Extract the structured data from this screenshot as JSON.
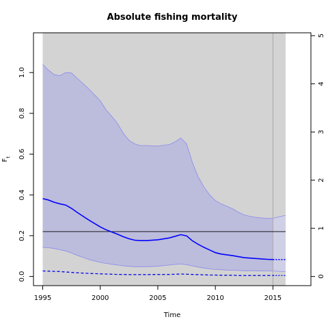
{
  "chart_data": {
    "type": "line",
    "title": "Absolute fishing mortality",
    "xlabel": "Time",
    "ylabel_main": "F",
    "ylabel_sub": "t",
    "xlim": [
      1994.2,
      2018.3
    ],
    "ylim": [
      -0.045,
      1.195
    ],
    "y2lim": [
      -0.19,
      5.06
    ],
    "x_ticks": [
      1995,
      2000,
      2005,
      2010,
      2015
    ],
    "x_tick_labels": [
      "1995",
      "2000",
      "2005",
      "2010",
      "2015"
    ],
    "y_ticks": [
      0.0,
      0.2,
      0.4,
      0.6,
      0.8,
      1.0
    ],
    "y_tick_labels": [
      "0.0",
      "0.2",
      "0.4",
      "0.6",
      "0.8",
      "1.0"
    ],
    "y2_ticks": [
      0,
      1,
      2,
      3,
      4,
      5
    ],
    "y2_tick_labels": [
      "0",
      "1",
      "2",
      "3",
      "4",
      "5"
    ],
    "shaded_x_range": [
      1995,
      2016.1
    ],
    "vertical_line_x": 2015,
    "reference_line_y": 0.22,
    "x": [
      1995,
      1995.5,
      1996,
      1996.5,
      1997,
      1997.5,
      1998,
      1999,
      2000,
      2000.5,
      2001,
      2001.5,
      2002,
      2002.5,
      2003,
      2003.5,
      2004,
      2005,
      2006,
      2006.5,
      2007,
      2007.5,
      2008,
      2008.5,
      2009,
      2009.5,
      2010,
      2010.5,
      2011,
      2011.5,
      2012,
      2012.5,
      2013,
      2013.5,
      2014,
      2014.5,
      2015
    ],
    "series": [
      {
        "role": "estimate",
        "style": "solid",
        "color": "#0000ff",
        "values": [
          0.382,
          0.375,
          0.364,
          0.356,
          0.35,
          0.334,
          0.314,
          0.277,
          0.243,
          0.229,
          0.218,
          0.207,
          0.195,
          0.185,
          0.178,
          0.176,
          0.176,
          0.18,
          0.189,
          0.197,
          0.205,
          0.199,
          0.175,
          0.158,
          0.143,
          0.13,
          0.117,
          0.11,
          0.106,
          0.102,
          0.097,
          0.092,
          0.09,
          0.088,
          0.086,
          0.084,
          0.083
        ]
      },
      {
        "role": "upper",
        "style": "band",
        "color": "#8a8aee",
        "values": [
          1.04,
          1.012,
          0.99,
          0.985,
          1.0,
          0.998,
          0.972,
          0.92,
          0.862,
          0.818,
          0.785,
          0.75,
          0.702,
          0.668,
          0.65,
          0.642,
          0.642,
          0.64,
          0.647,
          0.66,
          0.679,
          0.65,
          0.56,
          0.49,
          0.44,
          0.4,
          0.372,
          0.356,
          0.344,
          0.332,
          0.315,
          0.302,
          0.295,
          0.29,
          0.287,
          0.285,
          0.285
        ]
      },
      {
        "role": "lower",
        "style": "band",
        "color": "#8a8aee",
        "values": [
          0.142,
          0.141,
          0.137,
          0.131,
          0.125,
          0.115,
          0.103,
          0.083,
          0.069,
          0.064,
          0.06,
          0.056,
          0.052,
          0.05,
          0.048,
          0.048,
          0.048,
          0.05,
          0.056,
          0.059,
          0.061,
          0.058,
          0.052,
          0.046,
          0.041,
          0.037,
          0.034,
          0.033,
          0.031,
          0.03,
          0.029,
          0.028,
          0.028,
          0.028,
          0.027,
          0.027,
          0.027
        ]
      },
      {
        "role": "secondary",
        "style": "dashed",
        "color": "#0000ff",
        "values": [
          0.027,
          0.026,
          0.025,
          0.024,
          0.022,
          0.02,
          0.018,
          0.015,
          0.013,
          0.012,
          0.011,
          0.01,
          0.01,
          0.009,
          0.009,
          0.009,
          0.009,
          0.01,
          0.01,
          0.011,
          0.012,
          0.011,
          0.01,
          0.009,
          0.008,
          0.007,
          0.007,
          0.006,
          0.006,
          0.006,
          0.005,
          0.005,
          0.005,
          0.005,
          0.005,
          0.005,
          0.005
        ]
      },
      {
        "role": "black-dashed",
        "style": "dashed",
        "color": "#000000",
        "values": [
          0.027,
          0.026,
          0.025,
          0.024,
          0.022,
          0.02,
          0.018,
          0.015,
          0.013,
          0.012,
          0.011,
          0.01,
          0.01,
          0.009,
          0.009,
          0.009,
          0.009,
          0.01,
          0.01,
          0.011,
          0.012,
          0.011,
          0.01,
          0.009,
          0.008,
          0.007,
          0.007,
          0.006,
          0.006,
          0.006,
          0.005,
          0.005,
          0.005,
          0.005,
          0.005,
          0.005,
          0.005
        ]
      }
    ],
    "prediction": {
      "x": [
        2015,
        2015.5,
        2016.1
      ],
      "estimate": [
        0.083,
        0.083,
        0.083
      ],
      "upper": [
        0.285,
        0.292,
        0.3
      ],
      "lower": [
        0.027,
        0.025,
        0.024
      ],
      "secondary": [
        0.005,
        0.005,
        0.005
      ]
    },
    "grid": false,
    "legend": "none"
  }
}
